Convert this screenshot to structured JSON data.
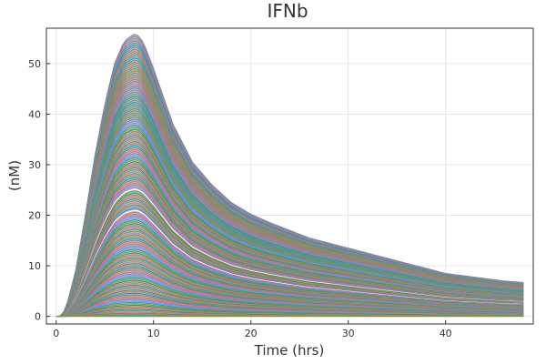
{
  "chart_data": {
    "type": "line",
    "title": "IFNb",
    "xlabel": "Time (hrs)",
    "ylabel": "(nM)",
    "xlim": [
      -1,
      49
    ],
    "ylim": [
      -1.5,
      57
    ],
    "xticks": [
      0,
      10,
      20,
      30,
      40
    ],
    "yticks": [
      0,
      10,
      20,
      30,
      40,
      50
    ],
    "grid": true,
    "legend": "none",
    "x_range": [
      0,
      48
    ],
    "envelope_max": {
      "x": [
        0,
        0.5,
        1,
        2,
        3,
        4,
        5,
        6,
        7,
        8,
        8.5,
        9,
        10,
        12,
        14,
        16,
        18,
        20,
        22,
        24,
        26,
        28,
        30,
        32,
        34,
        36,
        38,
        40,
        42,
        44,
        46,
        48
      ],
      "y": [
        0,
        0.1,
        1.5,
        9,
        20,
        32,
        42,
        50,
        54.5,
        55.8,
        55.5,
        54,
        49,
        38,
        30.5,
        26,
        22.5,
        20.2,
        18.5,
        17,
        15.5,
        14.5,
        13.5,
        12.5,
        11.5,
        10.5,
        9.5,
        8.5,
        8,
        7.5,
        7,
        6.7
      ]
    },
    "series_count": 150,
    "colors": [
      "#009AFA",
      "#E36F47",
      "#3EA44E",
      "#C371D2",
      "#AC8E18",
      "#00AAAE",
      "#ED5E93",
      "#C68225",
      "#00A98D",
      "#8E971D",
      "#00A9CD",
      "#9B7FE9",
      "#618DF6",
      "#F16C2F",
      "#DD65B6",
      "#6C9E33"
    ],
    "top_color": "#7B8A8B",
    "highlight_color": "#ffffff"
  }
}
